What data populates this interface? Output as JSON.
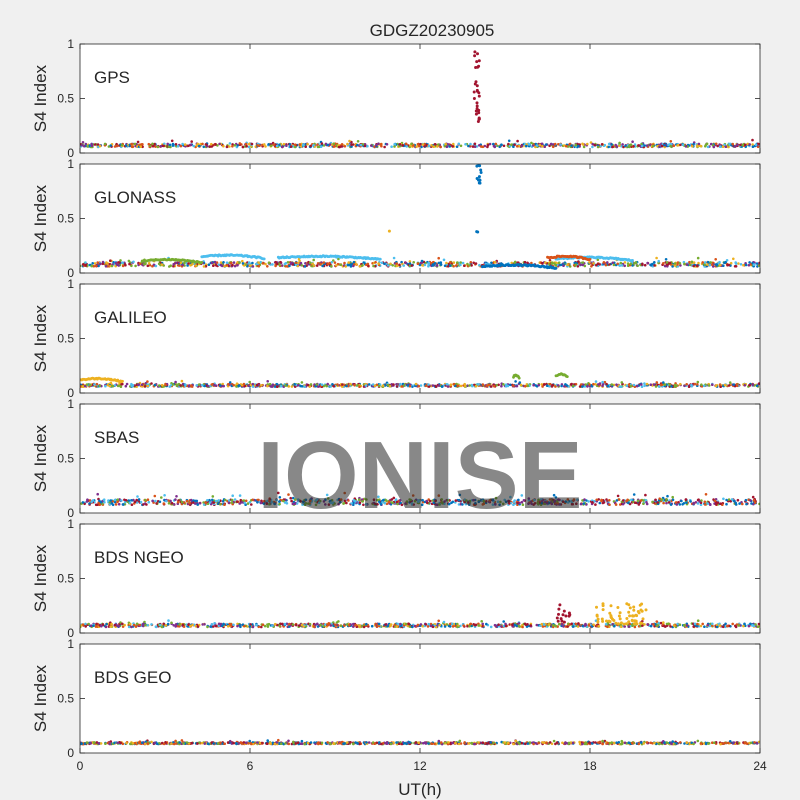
{
  "figure": {
    "title": "GDGZ20230905",
    "xlabel": "UT(h)",
    "watermark": "IONISE"
  },
  "chart_data": {
    "type": "scatter",
    "x_ticks": [
      "0",
      "6",
      "12",
      "18",
      "24"
    ],
    "xlim": [
      0,
      24
    ],
    "ylim": [
      0,
      1
    ],
    "y_ticks": [
      "0",
      "0.5",
      "1"
    ],
    "ylabel": "S4 Index",
    "grid": false,
    "panels": [
      {
        "label": "GPS",
        "baseline": 0.07,
        "noise": 0.015,
        "series_colors": [
          "#0072BD",
          "#D95319",
          "#EDB120",
          "#7E2F8E",
          "#77AC30",
          "#4DBEEE",
          "#A2142F"
        ],
        "features": [
          {
            "color": "#A2142F",
            "x_start": 13.9,
            "x_end": 14.1,
            "y_min": 0.28,
            "y_max": 0.96,
            "count": 28
          }
        ]
      },
      {
        "label": "GLONASS",
        "baseline": 0.08,
        "noise": 0.02,
        "series_colors": [
          "#0072BD",
          "#D95319",
          "#EDB120",
          "#7E2F8E",
          "#77AC30",
          "#4DBEEE",
          "#A2142F"
        ],
        "arcs": [
          {
            "color": "#77AC30",
            "x_start": 2.2,
            "x_end": 4.3,
            "y": 0.11
          },
          {
            "color": "#4DBEEE",
            "x_start": 4.3,
            "x_end": 6.5,
            "y": 0.15
          },
          {
            "color": "#4DBEEE",
            "x_start": 7.0,
            "x_end": 10.6,
            "y": 0.14
          },
          {
            "color": "#0072BD",
            "x_start": 14.2,
            "x_end": 16.8,
            "y": 0.06
          },
          {
            "color": "#4DBEEE",
            "x_start": 16.8,
            "x_end": 19.5,
            "y": 0.13
          },
          {
            "color": "#D95319",
            "x_start": 16.5,
            "x_end": 18.0,
            "y": 0.14
          }
        ],
        "features": [
          {
            "color": "#0072BD",
            "x_start": 14.0,
            "x_end": 14.2,
            "y_min": 0.82,
            "y_max": 0.99,
            "count": 12
          },
          {
            "color": "#0072BD",
            "x_start": 14.0,
            "x_end": 14.05,
            "y_min": 0.37,
            "y_max": 0.38,
            "count": 2
          },
          {
            "color": "#EDB120",
            "x_start": 10.9,
            "x_end": 10.95,
            "y_min": 0.38,
            "y_max": 0.39,
            "count": 1
          }
        ]
      },
      {
        "label": "GALILEO",
        "baseline": 0.07,
        "noise": 0.012,
        "series_colors": [
          "#0072BD",
          "#D95319",
          "#EDB120",
          "#7E2F8E",
          "#77AC30",
          "#4DBEEE",
          "#A2142F"
        ],
        "arcs": [
          {
            "color": "#EDB120",
            "x_start": 0.0,
            "x_end": 1.5,
            "y": 0.12
          },
          {
            "color": "#77AC30",
            "x_start": 15.3,
            "x_end": 15.5,
            "y": 0.15
          },
          {
            "color": "#77AC30",
            "x_start": 16.8,
            "x_end": 17.2,
            "y": 0.16
          }
        ],
        "features": []
      },
      {
        "label": "SBAS",
        "baseline": 0.1,
        "noise": 0.025,
        "series_colors": [
          "#D95319",
          "#7E2F8E",
          "#A2142F",
          "#77AC30",
          "#0072BD",
          "#4DBEEE"
        ],
        "features": []
      },
      {
        "label": "BDS NGEO",
        "baseline": 0.07,
        "noise": 0.015,
        "series_colors": [
          "#0072BD",
          "#D95319",
          "#EDB120",
          "#7E2F8E",
          "#77AC30",
          "#4DBEEE",
          "#A2142F"
        ],
        "features": [
          {
            "color": "#A2142F",
            "x_start": 16.8,
            "x_end": 17.3,
            "y_min": 0.1,
            "y_max": 0.26,
            "count": 14
          },
          {
            "color": "#EDB120",
            "x_start": 18.2,
            "x_end": 20.0,
            "y_min": 0.08,
            "y_max": 0.27,
            "count": 60
          }
        ]
      },
      {
        "label": "BDS GEO",
        "baseline": 0.09,
        "noise": 0.008,
        "series_colors": [
          "#7E2F8E",
          "#A2142F",
          "#D95319",
          "#0072BD",
          "#77AC30",
          "#EDB120"
        ],
        "features": []
      }
    ]
  }
}
